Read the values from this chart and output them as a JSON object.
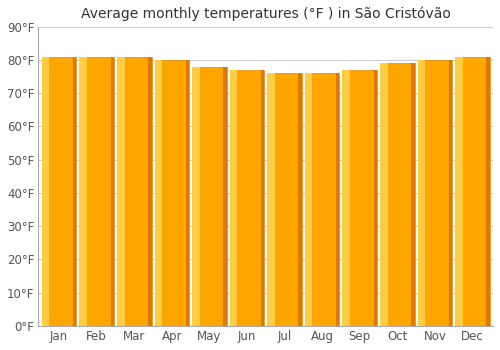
{
  "title": "Average monthly temperatures (°F ) in São Cristóvão",
  "months": [
    "Jan",
    "Feb",
    "Mar",
    "Apr",
    "May",
    "Jun",
    "Jul",
    "Aug",
    "Sep",
    "Oct",
    "Nov",
    "Dec"
  ],
  "values": [
    81,
    81,
    81,
    80,
    78,
    77,
    76,
    76,
    77,
    79,
    80,
    81
  ],
  "bar_color_main": "#FFA500",
  "bar_color_light": "#FFCC44",
  "bar_color_dark": "#E07800",
  "bar_color_edge": "#E08800",
  "ylim": [
    0,
    90
  ],
  "yticks": [
    0,
    10,
    20,
    30,
    40,
    50,
    60,
    70,
    80,
    90
  ],
  "ytick_labels": [
    "0°F",
    "10°F",
    "20°F",
    "30°F",
    "40°F",
    "50°F",
    "60°F",
    "70°F",
    "80°F",
    "90°F"
  ],
  "background_color": "#ffffff",
  "grid_color": "#cccccc",
  "title_fontsize": 10,
  "tick_fontsize": 8.5,
  "bar_width": 0.92
}
